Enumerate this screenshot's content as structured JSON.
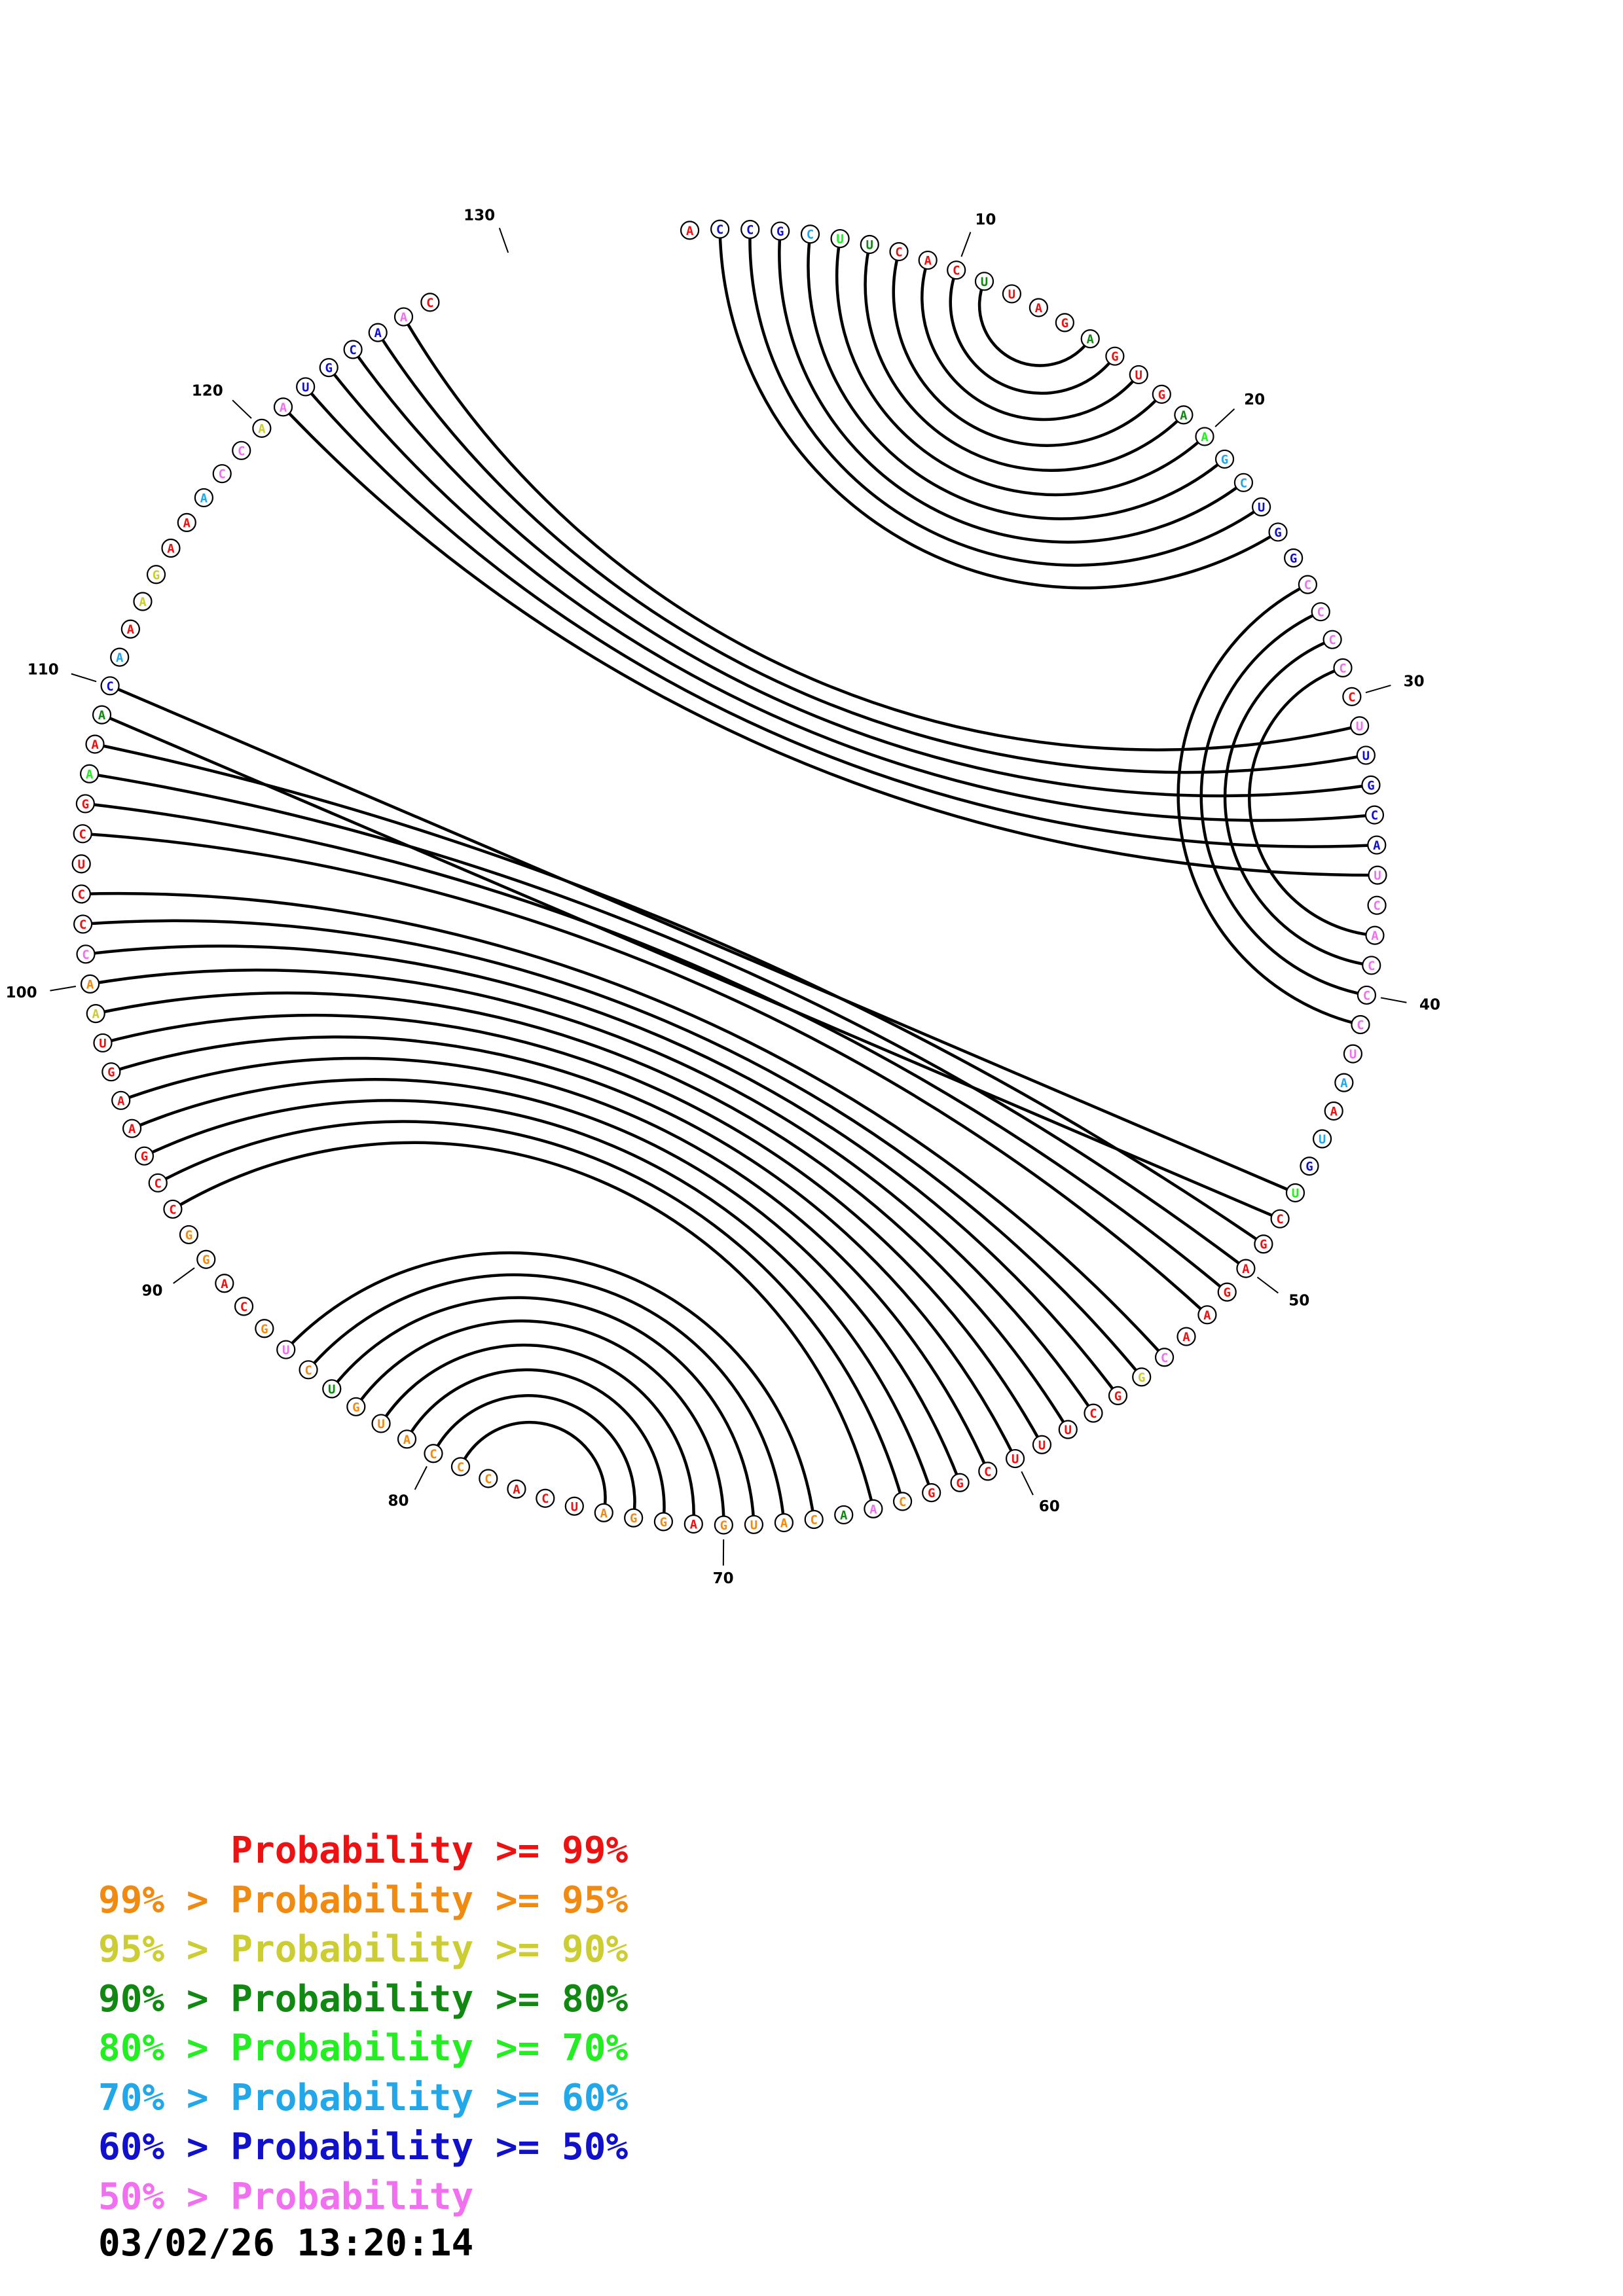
{
  "colors": {
    "c99": "#ee1111",
    "c95": "#f08a10",
    "c90": "#cccc33",
    "c80": "#118811",
    "c70": "#22ee22",
    "c60": "#22a8e8",
    "c50": "#1111cc",
    "clow": "#f070f0"
  },
  "sequence": [
    {
      "n": "A",
      "c": "c99"
    },
    {
      "n": "C",
      "c": "c50"
    },
    {
      "n": "C",
      "c": "c50"
    },
    {
      "n": "G",
      "c": "c50"
    },
    {
      "n": "C",
      "c": "c60"
    },
    {
      "n": "U",
      "c": "c70"
    },
    {
      "n": "U",
      "c": "c80"
    },
    {
      "n": "C",
      "c": "c99"
    },
    {
      "n": "A",
      "c": "c99"
    },
    {
      "n": "C",
      "c": "c99"
    },
    {
      "n": "U",
      "c": "c80"
    },
    {
      "n": "U",
      "c": "c99"
    },
    {
      "n": "A",
      "c": "c99"
    },
    {
      "n": "G",
      "c": "c99"
    },
    {
      "n": "A",
      "c": "c80"
    },
    {
      "n": "G",
      "c": "c99"
    },
    {
      "n": "U",
      "c": "c99"
    },
    {
      "n": "G",
      "c": "c99"
    },
    {
      "n": "A",
      "c": "c80"
    },
    {
      "n": "A",
      "c": "c70"
    },
    {
      "n": "G",
      "c": "c60"
    },
    {
      "n": "C",
      "c": "c60"
    },
    {
      "n": "U",
      "c": "c50"
    },
    {
      "n": "G",
      "c": "c50"
    },
    {
      "n": "G",
      "c": "c50"
    },
    {
      "n": "C",
      "c": "clow"
    },
    {
      "n": "C",
      "c": "clow"
    },
    {
      "n": "C",
      "c": "clow"
    },
    {
      "n": "C",
      "c": "clow"
    },
    {
      "n": "C",
      "c": "c99"
    },
    {
      "n": "U",
      "c": "clow"
    },
    {
      "n": "U",
      "c": "c50"
    },
    {
      "n": "G",
      "c": "c50"
    },
    {
      "n": "C",
      "c": "c50"
    },
    {
      "n": "A",
      "c": "c50"
    },
    {
      "n": "U",
      "c": "clow"
    },
    {
      "n": "C",
      "c": "clow"
    },
    {
      "n": "A",
      "c": "clow"
    },
    {
      "n": "C",
      "c": "clow"
    },
    {
      "n": "C",
      "c": "clow"
    },
    {
      "n": "C",
      "c": "clow"
    },
    {
      "n": "U",
      "c": "clow"
    },
    {
      "n": "A",
      "c": "c60"
    },
    {
      "n": "A",
      "c": "c99"
    },
    {
      "n": "U",
      "c": "c60"
    },
    {
      "n": "G",
      "c": "c50"
    },
    {
      "n": "U",
      "c": "c70"
    },
    {
      "n": "C",
      "c": "c99"
    },
    {
      "n": "G",
      "c": "c99"
    },
    {
      "n": "A",
      "c": "c99"
    },
    {
      "n": "G",
      "c": "c99"
    },
    {
      "n": "A",
      "c": "c99"
    },
    {
      "n": "A",
      "c": "c99"
    },
    {
      "n": "C",
      "c": "clow"
    },
    {
      "n": "G",
      "c": "c90"
    },
    {
      "n": "G",
      "c": "c99"
    },
    {
      "n": "C",
      "c": "c99"
    },
    {
      "n": "U",
      "c": "c99"
    },
    {
      "n": "U",
      "c": "c99"
    },
    {
      "n": "U",
      "c": "c99"
    },
    {
      "n": "C",
      "c": "c99"
    },
    {
      "n": "G",
      "c": "c99"
    },
    {
      "n": "G",
      "c": "c99"
    },
    {
      "n": "C",
      "c": "c95"
    },
    {
      "n": "A",
      "c": "clow"
    },
    {
      "n": "A",
      "c": "c80"
    },
    {
      "n": "C",
      "c": "c95"
    },
    {
      "n": "A",
      "c": "c95"
    },
    {
      "n": "U",
      "c": "c95"
    },
    {
      "n": "G",
      "c": "c95"
    },
    {
      "n": "A",
      "c": "c99"
    },
    {
      "n": "G",
      "c": "c95"
    },
    {
      "n": "G",
      "c": "c95"
    },
    {
      "n": "A",
      "c": "c95"
    },
    {
      "n": "U",
      "c": "c99"
    },
    {
      "n": "C",
      "c": "c99"
    },
    {
      "n": "A",
      "c": "c99"
    },
    {
      "n": "C",
      "c": "c95"
    },
    {
      "n": "C",
      "c": "c95"
    },
    {
      "n": "C",
      "c": "c95"
    },
    {
      "n": "A",
      "c": "c95"
    },
    {
      "n": "U",
      "c": "c95"
    },
    {
      "n": "G",
      "c": "c95"
    },
    {
      "n": "U",
      "c": "c80"
    },
    {
      "n": "C",
      "c": "c95"
    },
    {
      "n": "U",
      "c": "clow"
    },
    {
      "n": "G",
      "c": "c95"
    },
    {
      "n": "C",
      "c": "c99"
    },
    {
      "n": "A",
      "c": "c99"
    },
    {
      "n": "G",
      "c": "c95"
    },
    {
      "n": "G",
      "c": "c95"
    },
    {
      "n": "C",
      "c": "c99"
    },
    {
      "n": "C",
      "c": "c99"
    },
    {
      "n": "G",
      "c": "c99"
    },
    {
      "n": "A",
      "c": "c99"
    },
    {
      "n": "A",
      "c": "c99"
    },
    {
      "n": "G",
      "c": "c99"
    },
    {
      "n": "U",
      "c": "c99"
    },
    {
      "n": "A",
      "c": "c90"
    },
    {
      "n": "A",
      "c": "c95"
    },
    {
      "n": "C",
      "c": "clow"
    },
    {
      "n": "C",
      "c": "c99"
    },
    {
      "n": "C",
      "c": "c99"
    },
    {
      "n": "U",
      "c": "c99"
    },
    {
      "n": "C",
      "c": "c99"
    },
    {
      "n": "G",
      "c": "c99"
    },
    {
      "n": "A",
      "c": "c70"
    },
    {
      "n": "A",
      "c": "c99"
    },
    {
      "n": "A",
      "c": "c80"
    },
    {
      "n": "C",
      "c": "c50"
    },
    {
      "n": "A",
      "c": "c60"
    },
    {
      "n": "A",
      "c": "c99"
    },
    {
      "n": "A",
      "c": "c90"
    },
    {
      "n": "G",
      "c": "c90"
    },
    {
      "n": "A",
      "c": "c99"
    },
    {
      "n": "A",
      "c": "c99"
    },
    {
      "n": "A",
      "c": "c60"
    },
    {
      "n": "C",
      "c": "clow"
    },
    {
      "n": "C",
      "c": "clow"
    },
    {
      "n": "A",
      "c": "c90"
    },
    {
      "n": "A",
      "c": "clow"
    },
    {
      "n": "U",
      "c": "c50"
    },
    {
      "n": "G",
      "c": "c50"
    },
    {
      "n": "C",
      "c": "c50"
    },
    {
      "n": "A",
      "c": "c50"
    },
    {
      "n": "A",
      "c": "clow"
    },
    {
      "n": "C",
      "c": "c99"
    }
  ],
  "pairs": [
    [
      2,
      24
    ],
    [
      3,
      23
    ],
    [
      4,
      22
    ],
    [
      5,
      21
    ],
    [
      6,
      20
    ],
    [
      7,
      19
    ],
    [
      8,
      18
    ],
    [
      9,
      17
    ],
    [
      10,
      16
    ],
    [
      11,
      15
    ],
    [
      26,
      41
    ],
    [
      27,
      40
    ],
    [
      28,
      39
    ],
    [
      29,
      38
    ],
    [
      31,
      126
    ],
    [
      32,
      125
    ],
    [
      33,
      124
    ],
    [
      34,
      123
    ],
    [
      35,
      122
    ],
    [
      36,
      121
    ],
    [
      47,
      110
    ],
    [
      48,
      109
    ],
    [
      49,
      108
    ],
    [
      50,
      107
    ],
    [
      51,
      106
    ],
    [
      52,
      105
    ],
    [
      54,
      103
    ],
    [
      55,
      102
    ],
    [
      56,
      101
    ],
    [
      57,
      100
    ],
    [
      58,
      99
    ],
    [
      59,
      98
    ],
    [
      60,
      97
    ],
    [
      61,
      96
    ],
    [
      62,
      95
    ],
    [
      63,
      94
    ],
    [
      64,
      93
    ],
    [
      65,
      92
    ],
    [
      67,
      86
    ],
    [
      68,
      85
    ],
    [
      69,
      84
    ],
    [
      70,
      83
    ],
    [
      71,
      82
    ],
    [
      72,
      81
    ],
    [
      73,
      80
    ],
    [
      74,
      79
    ]
  ],
  "ticks": [
    "10",
    "20",
    "30",
    "40",
    "50",
    "60",
    "70",
    "80",
    "90",
    "100",
    "110",
    "120",
    "130"
  ],
  "legend": [
    {
      "prefix": "",
      "label": "Probability",
      "suffix": ">= 99%",
      "color": "c99"
    },
    {
      "prefix": "99% >",
      "label": "Probability",
      "suffix": ">= 95%",
      "color": "c95"
    },
    {
      "prefix": "95% >",
      "label": "Probability",
      "suffix": ">= 90%",
      "color": "c90"
    },
    {
      "prefix": "90% >",
      "label": "Probability",
      "suffix": ">= 80%",
      "color": "c80"
    },
    {
      "prefix": "80% >",
      "label": "Probability",
      "suffix": ">= 70%",
      "color": "c70"
    },
    {
      "prefix": "70% >",
      "label": "Probability",
      "suffix": ">= 60%",
      "color": "c60"
    },
    {
      "prefix": "60% >",
      "label": "Probability",
      "suffix": ">= 50%",
      "color": "c50"
    },
    {
      "prefix": "50% >",
      "label": "Probability",
      "suffix": "",
      "color": "clow"
    }
  ],
  "timestamp": "03/02/26 13:20:14"
}
